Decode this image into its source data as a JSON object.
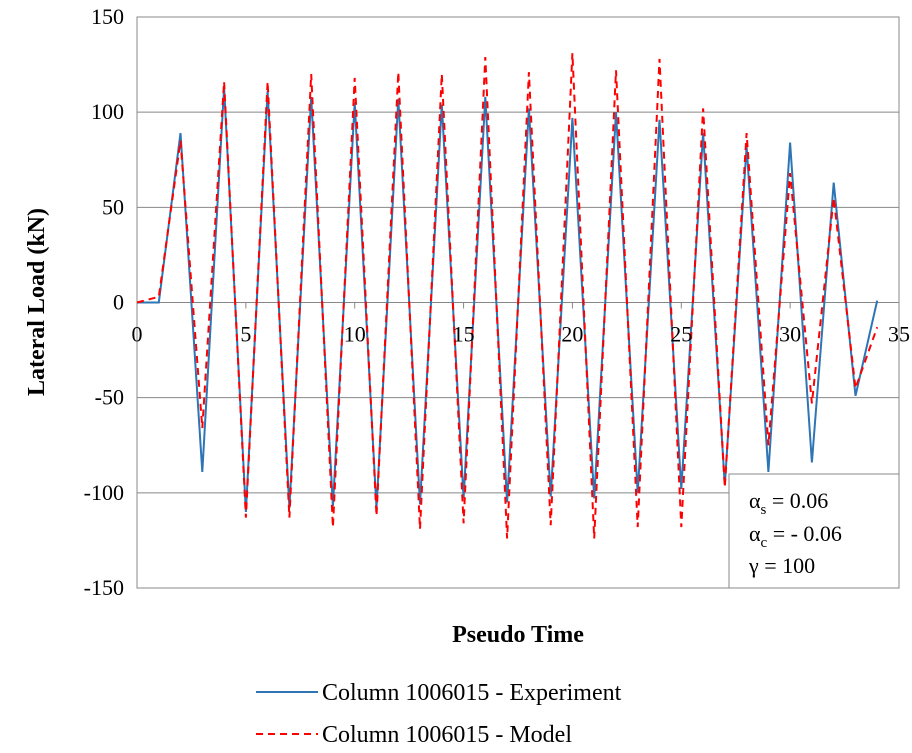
{
  "chart_data": {
    "type": "line",
    "xlabel": "Pseudo Time",
    "ylabel": "Lateral Load (kN)",
    "xlim": [
      0,
      35
    ],
    "ylim": [
      -150,
      150
    ],
    "x_ticks": [
      0,
      5,
      10,
      15,
      20,
      25,
      30,
      35
    ],
    "y_ticks": [
      150,
      100,
      50,
      0,
      -50,
      -100,
      -150
    ],
    "grid": "horizontal",
    "legend_position": "bottom",
    "series": [
      {
        "name": "Column 1006015 - Experiment",
        "color": "#2e75b6",
        "style": "solid",
        "x": [
          0,
          1,
          2,
          3,
          4,
          5,
          6,
          7,
          8,
          9,
          10,
          11,
          12,
          13,
          14,
          15,
          16,
          17,
          18,
          19,
          20,
          21,
          22,
          23,
          24,
          25,
          26,
          27,
          28,
          29,
          30,
          31,
          32,
          33,
          34
        ],
        "y": [
          0,
          0,
          89,
          -89,
          113,
          -110,
          111,
          -108,
          108,
          -107,
          105,
          -108,
          107,
          -106,
          104,
          -103,
          108,
          -105,
          102,
          -102,
          97,
          -103,
          100,
          -100,
          96,
          -98,
          89,
          -96,
          82,
          -89,
          84,
          -84,
          63,
          -49,
          1
        ]
      },
      {
        "name": "Column 1006015 - Model",
        "color": "#ff0000",
        "style": "dashed",
        "x": [
          0,
          1,
          2,
          3,
          4,
          5,
          6,
          7,
          8,
          9,
          10,
          11,
          12,
          13,
          14,
          15,
          16,
          17,
          18,
          19,
          20,
          21,
          22,
          23,
          24,
          25,
          26,
          27,
          28,
          29,
          30,
          31,
          32,
          33,
          34
        ],
        "y": [
          0,
          3,
          85,
          -66,
          116,
          -113,
          116,
          -113,
          120,
          -118,
          118,
          -112,
          121,
          -119,
          120,
          -116,
          129,
          -124,
          121,
          -117,
          131,
          -124,
          122,
          -118,
          128,
          -118,
          102,
          -97,
          89,
          -75,
          68,
          -53,
          55,
          -45,
          -13
        ]
      }
    ],
    "annotation": {
      "lines": [
        {
          "symbol": "α",
          "sub": "s",
          "text": " = 0.06"
        },
        {
          "symbol": "α",
          "sub": "c",
          "text": " = - 0.06"
        },
        {
          "symbol": "γ",
          "sub": "",
          "text": " = 100"
        }
      ]
    }
  }
}
